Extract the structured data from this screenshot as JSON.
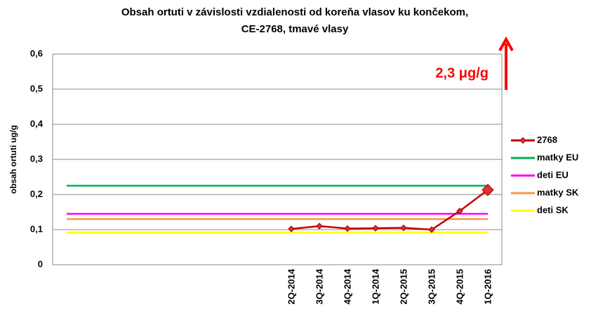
{
  "chart_data": {
    "type": "line",
    "title": [
      "Obsah ortuti v závislosti vzdialenosti od koreňa vlasov ku končekom,",
      "CE-2768, tmavé vlasy"
    ],
    "y_label": "obsah ortuti ug/g",
    "annotation": "2,3 μg/g",
    "categories": [
      null,
      null,
      null,
      null,
      null,
      null,
      null,
      null,
      "2Q-2014",
      "3Q-2014",
      "4Q-2014",
      "1Q-2014",
      "2Q-2015",
      "3Q-2015",
      "4Q-2015",
      "1Q-2016"
    ],
    "series": [
      {
        "name": "2768",
        "color": "#c00000",
        "marker": "diamond",
        "values": [
          null,
          null,
          null,
          null,
          null,
          null,
          null,
          null,
          0.102,
          0.11,
          0.103,
          0.104,
          0.105,
          0.1,
          0.153,
          0.213
        ]
      },
      {
        "name": "matky EU",
        "color": "#00b050",
        "values": [
          0.225,
          0.225,
          0.225,
          0.225,
          0.225,
          0.225,
          0.225,
          0.225,
          0.225,
          0.225,
          0.225,
          0.225,
          0.225,
          0.225,
          0.225,
          0.225
        ]
      },
      {
        "name": "deti EU",
        "color": "#ff00ff",
        "values": [
          0.145,
          0.145,
          0.145,
          0.145,
          0.145,
          0.145,
          0.145,
          0.145,
          0.145,
          0.145,
          0.145,
          0.145,
          0.145,
          0.145,
          0.145,
          0.145
        ]
      },
      {
        "name": "matky SK",
        "color": "#f79646",
        "values": [
          0.13,
          0.13,
          0.13,
          0.13,
          0.13,
          0.13,
          0.13,
          0.13,
          0.13,
          0.13,
          0.13,
          0.13,
          0.13,
          0.13,
          0.13,
          0.13
        ]
      },
      {
        "name": "deti SK",
        "color": "#ffff00",
        "values": [
          0.092,
          0.092,
          0.092,
          0.092,
          0.092,
          0.092,
          0.092,
          0.092,
          0.092,
          0.092,
          0.092,
          0.092,
          0.092,
          0.092,
          0.092,
          0.092
        ]
      }
    ],
    "ylim": [
      0,
      0.6
    ],
    "yticks": [
      0,
      {
        "value": 0.1,
        "label": "0,1"
      },
      {
        "value": 0.2,
        "label": "0,2"
      },
      {
        "value": 0.3,
        "label": "0,3"
      },
      {
        "value": 0.4,
        "label": "0,4"
      },
      {
        "value": 0.5,
        "label": "0,5"
      },
      {
        "value": 0.6,
        "label": "0,6"
      }
    ],
    "grid": true,
    "legend": "right"
  }
}
